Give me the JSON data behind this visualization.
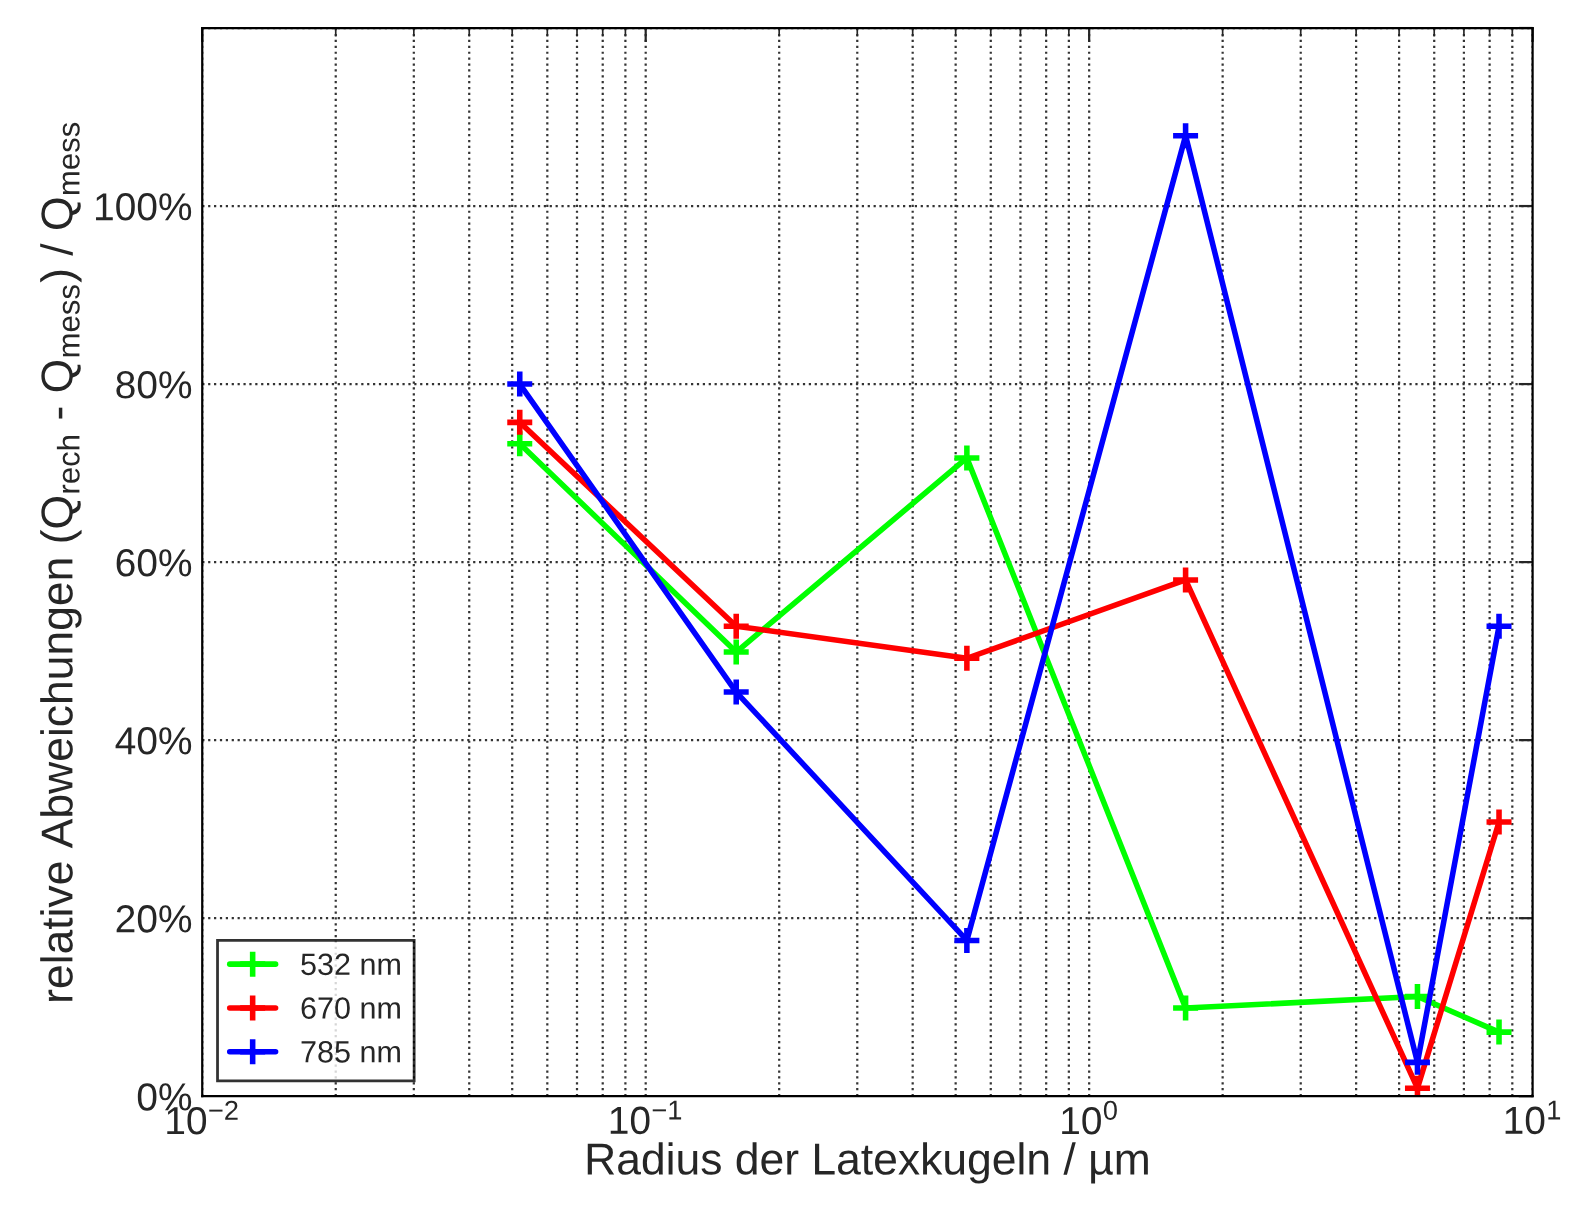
{
  "chart_data": {
    "type": "line",
    "xlabel": "Radius der Latexkugeln / µm",
    "ylabel": "relative Abweichungen (Q$_{rech}$ - Q$_{mess}$) / Q$_{mess}$",
    "x": [
      0.052,
      0.16,
      0.53,
      1.65,
      5.5,
      8.4
    ],
    "series": [
      {
        "name": "532 nm",
        "color": "#00ff00",
        "values": [
          73.3,
          49.9,
          71.7,
          9.9,
          11.2,
          7.2
        ]
      },
      {
        "name": "670 nm",
        "color": "#ff0000",
        "values": [
          75.7,
          52.8,
          49.2,
          58.0,
          0.9,
          30.8
        ]
      },
      {
        "name": "785 nm",
        "color": "#0000ff",
        "values": [
          80.0,
          45.4,
          17.5,
          107.9,
          3.8,
          52.8
        ]
      }
    ],
    "log": "x",
    "xlim": [
      0.01,
      10
    ],
    "xticks": [
      {
        "value": 0.01,
        "label": "10$^{−2}$"
      },
      {
        "value": 0.1,
        "label": "10$^{−1}$"
      },
      {
        "value": 1,
        "label": "10$^{0}$"
      },
      {
        "value": 10,
        "label": "10$^{1}$"
      }
    ],
    "ylim": [
      0,
      120
    ],
    "yticks": [
      {
        "value": 0,
        "label": "0%"
      },
      {
        "value": 20,
        "label": "20%"
      },
      {
        "value": 40,
        "label": "40%"
      },
      {
        "value": 60,
        "label": "60%"
      },
      {
        "value": 80,
        "label": "80%"
      },
      {
        "value": 100,
        "label": "100%"
      },
      {
        "value": 120,
        "label": null
      }
    ],
    "grid": true,
    "legend": "bottom left",
    "marker": "cross",
    "line_style": "solid"
  }
}
